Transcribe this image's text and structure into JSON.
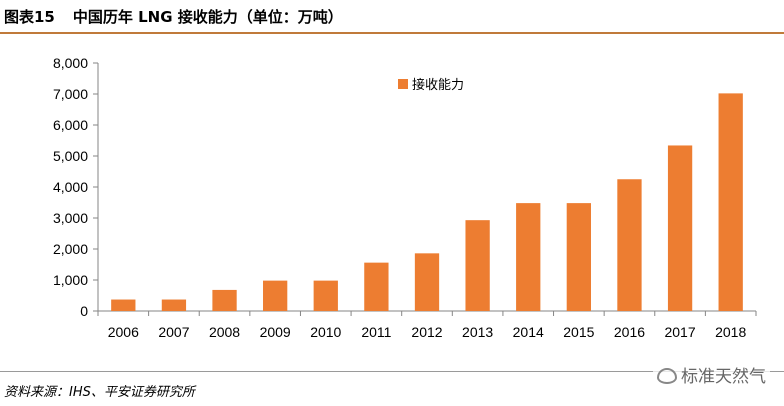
{
  "title": {
    "fig_no": "图表15",
    "text": "中国历年 LNG 接收能力（单位：万吨）"
  },
  "source": "资料来源：IHS、平安证券研究所",
  "watermark": {
    "label": "标准天然气",
    "icon": "wechat-icon"
  },
  "chart_data": {
    "type": "bar",
    "categories": [
      "2006",
      "2007",
      "2008",
      "2009",
      "2010",
      "2011",
      "2012",
      "2013",
      "2014",
      "2015",
      "2016",
      "2017",
      "2018"
    ],
    "series": [
      {
        "name": "接收能力",
        "values": [
          370,
          370,
          680,
          980,
          980,
          1560,
          1860,
          2930,
          3480,
          3480,
          4250,
          5340,
          7020
        ]
      }
    ],
    "ylim": [
      0,
      8000
    ],
    "yticks": [
      "0",
      "1,000",
      "2,000",
      "3,000",
      "4,000",
      "5,000",
      "6,000",
      "7,000",
      "8,000"
    ],
    "grid": false,
    "legend": "top-center",
    "colors": {
      "bar": "#ed7d31",
      "axis": "#868686"
    }
  }
}
